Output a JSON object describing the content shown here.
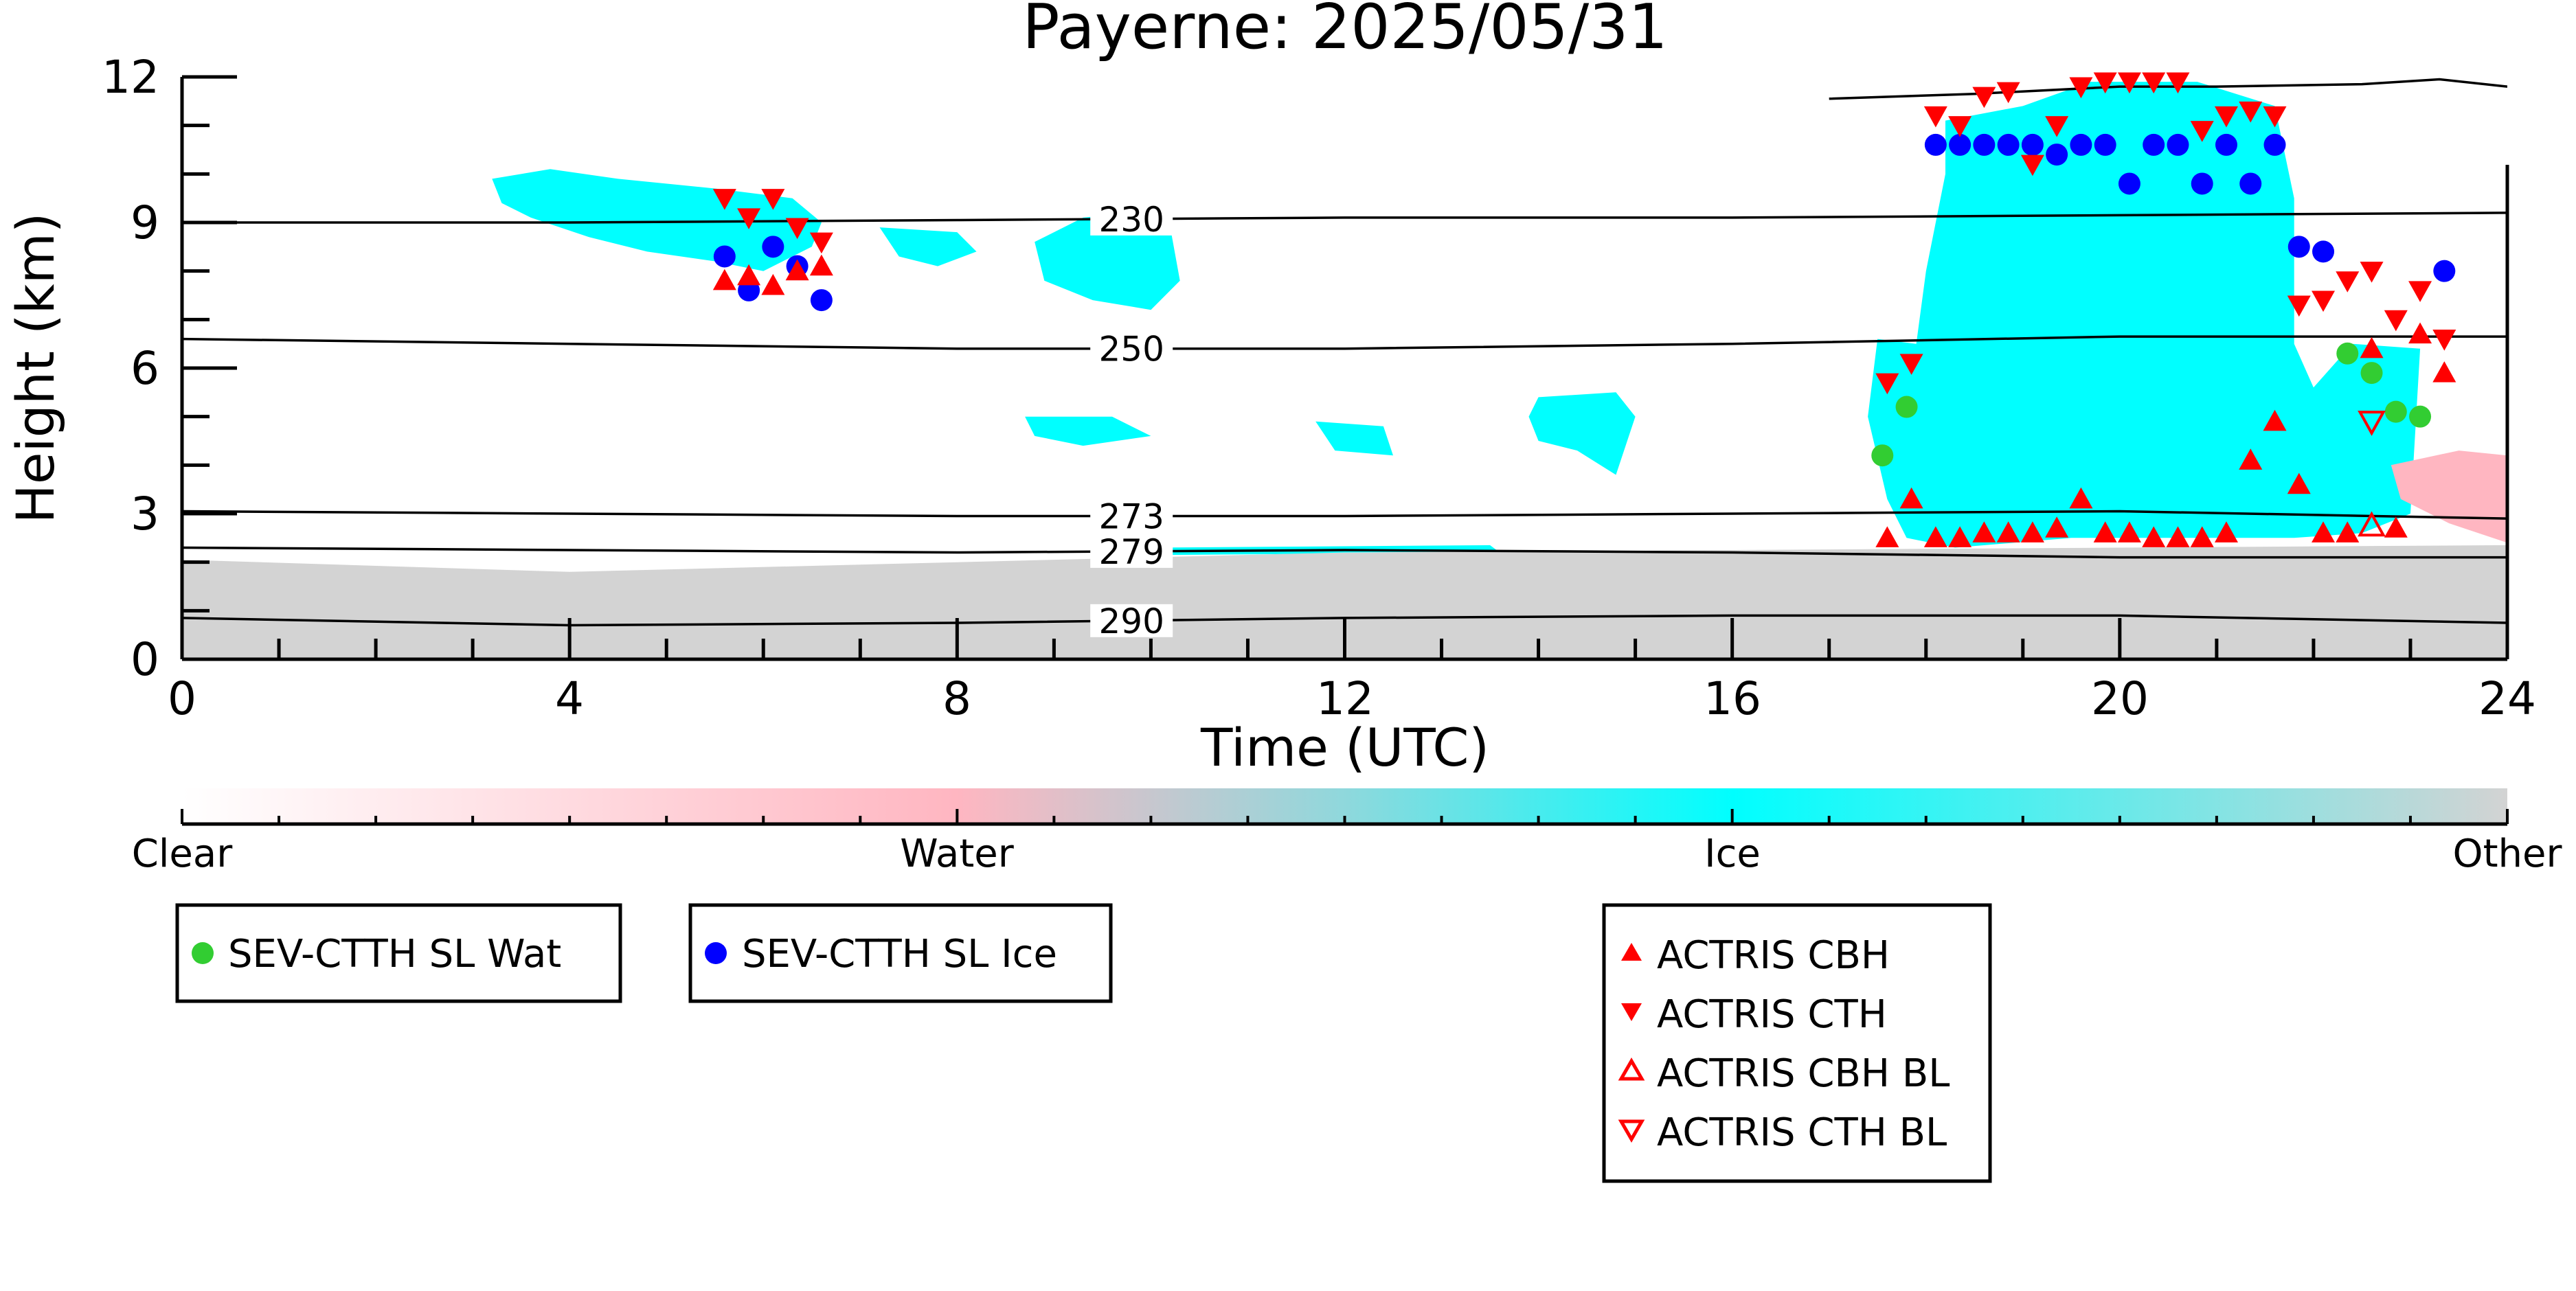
{
  "chart_data": {
    "type": "scatter",
    "title": "Payerne: 2025/05/31",
    "xlabel": "Time (UTC)",
    "ylabel": "Height (km)",
    "xlim": [
      0,
      24
    ],
    "ylim": [
      0,
      12
    ],
    "x_ticks": [
      "0",
      "4",
      "8",
      "12",
      "16",
      "20",
      "24"
    ],
    "y_ticks": [
      "0",
      "3",
      "6",
      "9",
      "12"
    ],
    "colors": {
      "clear": "#ffffff",
      "water": "#ffb6c1",
      "ice": "#00ffff",
      "other": "#d3d3d3",
      "sev_water": "#32cd32",
      "sev_ice": "#0000ff",
      "actris": "#ff0000",
      "isotherm": "#000000"
    },
    "colorbar": {
      "labels": [
        "Clear",
        "Water",
        "Ice",
        "Other"
      ],
      "stops": [
        0,
        0.333,
        0.667,
        1
      ]
    },
    "isotherms": [
      {
        "label": "230",
        "x": [
          0,
          4,
          8,
          12,
          16,
          20,
          24
        ],
        "y": [
          9.0,
          9.0,
          9.05,
          9.1,
          9.1,
          9.15,
          9.2
        ]
      },
      {
        "label": "250",
        "x": [
          0,
          4,
          8,
          12,
          16,
          20,
          24
        ],
        "y": [
          6.6,
          6.5,
          6.4,
          6.4,
          6.5,
          6.65,
          6.65
        ]
      },
      {
        "label": "273",
        "x": [
          0,
          4,
          8,
          12,
          16,
          20,
          24
        ],
        "y": [
          3.05,
          3.0,
          2.95,
          2.95,
          3.0,
          3.05,
          2.9
        ]
      },
      {
        "label": "279",
        "x": [
          0,
          4,
          8,
          12,
          16,
          20,
          24
        ],
        "y": [
          2.3,
          2.25,
          2.2,
          2.25,
          2.2,
          2.1,
          2.1
        ]
      },
      {
        "label": "290",
        "x": [
          0,
          4,
          8,
          12,
          16,
          20,
          24
        ],
        "y": [
          0.85,
          0.7,
          0.75,
          0.85,
          0.9,
          0.9,
          0.75
        ]
      }
    ],
    "isotherm_label_x": 9.8,
    "top_contour": {
      "x": [
        17.0,
        18.5,
        20,
        21,
        22.5,
        23.3,
        24
      ],
      "y": [
        11.55,
        11.65,
        11.8,
        11.8,
        11.85,
        11.95,
        11.8
      ]
    },
    "cloud_regions": [
      {
        "class": "ice",
        "points": [
          [
            3.2,
            9.9
          ],
          [
            3.8,
            10.1
          ],
          [
            4.5,
            9.9
          ],
          [
            5.5,
            9.7
          ],
          [
            6.3,
            9.5
          ],
          [
            6.6,
            9.0
          ],
          [
            6.5,
            8.5
          ],
          [
            6.0,
            8.0
          ],
          [
            5.5,
            8.2
          ],
          [
            4.8,
            8.4
          ],
          [
            4.2,
            8.7
          ],
          [
            3.6,
            9.1
          ],
          [
            3.3,
            9.4
          ]
        ]
      },
      {
        "class": "ice",
        "points": [
          [
            7.2,
            8.9
          ],
          [
            8.0,
            8.8
          ],
          [
            8.2,
            8.4
          ],
          [
            7.8,
            8.1
          ],
          [
            7.4,
            8.3
          ]
        ]
      },
      {
        "class": "ice",
        "points": [
          [
            8.8,
            8.6
          ],
          [
            9.3,
            9.1
          ],
          [
            9.8,
            9.2
          ],
          [
            10.2,
            8.9
          ],
          [
            10.3,
            7.8
          ],
          [
            10.0,
            7.2
          ],
          [
            9.4,
            7.4
          ],
          [
            8.9,
            7.8
          ]
        ]
      },
      {
        "class": "ice",
        "points": [
          [
            8.7,
            5.0
          ],
          [
            9.6,
            5.0
          ],
          [
            10.0,
            4.6
          ],
          [
            9.3,
            4.4
          ],
          [
            8.8,
            4.6
          ]
        ]
      },
      {
        "class": "ice",
        "points": [
          [
            11.7,
            4.9
          ],
          [
            12.4,
            4.8
          ],
          [
            12.5,
            4.2
          ],
          [
            11.9,
            4.3
          ]
        ]
      },
      {
        "class": "ice",
        "points": [
          [
            14.0,
            5.4
          ],
          [
            14.8,
            5.5
          ],
          [
            15.0,
            5.0
          ],
          [
            14.8,
            3.8
          ],
          [
            14.4,
            4.3
          ],
          [
            14.0,
            4.5
          ],
          [
            13.9,
            5.0
          ]
        ]
      },
      {
        "class": "ice",
        "points": [
          [
            17.5,
            6.6
          ],
          [
            17.9,
            6.5
          ],
          [
            18.0,
            8.0
          ],
          [
            18.2,
            10.0
          ],
          [
            18.2,
            11.1
          ],
          [
            19.0,
            11.4
          ],
          [
            19.7,
            11.9
          ],
          [
            20.8,
            11.9
          ],
          [
            21.6,
            11.4
          ],
          [
            21.8,
            9.5
          ],
          [
            21.8,
            6.5
          ],
          [
            22.0,
            5.6
          ],
          [
            22.4,
            6.5
          ],
          [
            23.1,
            6.4
          ],
          [
            23.0,
            3.0
          ],
          [
            22.5,
            2.6
          ],
          [
            21.8,
            2.5
          ],
          [
            21.2,
            2.5
          ],
          [
            19.5,
            2.5
          ],
          [
            18.3,
            2.3
          ],
          [
            17.8,
            2.5
          ],
          [
            17.6,
            3.3
          ],
          [
            17.4,
            5.0
          ]
        ]
      },
      {
        "class": "ice",
        "points": [
          [
            10.0,
            2.3
          ],
          [
            13.5,
            2.35
          ],
          [
            13.6,
            2.2
          ],
          [
            10.2,
            2.15
          ]
        ]
      },
      {
        "class": "water",
        "points": [
          [
            22.8,
            4.0
          ],
          [
            23.5,
            4.3
          ],
          [
            24.0,
            4.2
          ],
          [
            24.0,
            2.4
          ],
          [
            23.4,
            2.8
          ],
          [
            22.9,
            3.3
          ]
        ]
      },
      {
        "class": "other",
        "points": [
          [
            0,
            2.05
          ],
          [
            4,
            1.8
          ],
          [
            8,
            2.0
          ],
          [
            12,
            2.2
          ],
          [
            16,
            2.25
          ],
          [
            20,
            2.3
          ],
          [
            24,
            2.35
          ],
          [
            24,
            0
          ],
          [
            0,
            0
          ]
        ]
      }
    ],
    "series": [
      {
        "name": "SEV-CTTH SL Wat",
        "marker": "circle",
        "color": "#32cd32",
        "x": [
          17.55,
          17.8,
          22.35,
          22.6,
          22.85,
          23.1
        ],
        "y": [
          4.2,
          5.2,
          6.3,
          5.9,
          5.1,
          5.0
        ]
      },
      {
        "name": "SEV-CTTH SL Ice",
        "marker": "circle",
        "color": "#0000ff",
        "x": [
          5.6,
          5.85,
          6.1,
          6.35,
          6.6,
          18.1,
          18.35,
          18.6,
          18.85,
          19.1,
          19.35,
          19.6,
          19.85,
          20.1,
          20.35,
          20.6,
          20.85,
          21.1,
          21.35,
          21.6,
          21.85,
          22.1,
          23.35
        ],
        "y": [
          8.3,
          7.6,
          8.5,
          8.1,
          7.4,
          10.6,
          10.6,
          10.6,
          10.6,
          10.6,
          10.4,
          10.6,
          10.6,
          9.8,
          10.6,
          10.6,
          9.8,
          10.6,
          9.8,
          10.6,
          8.5,
          8.4,
          8.0
        ]
      },
      {
        "name": "ACTRIS CBH",
        "marker": "triangle-up",
        "color": "#ff0000",
        "filled": true,
        "x": [
          5.6,
          5.85,
          6.1,
          6.35,
          6.6,
          17.6,
          17.85,
          18.1,
          18.35,
          18.6,
          18.85,
          19.1,
          19.35,
          19.6,
          19.85,
          20.1,
          20.35,
          20.6,
          20.85,
          21.1,
          21.35,
          21.6,
          21.85,
          22.1,
          22.35,
          22.6,
          22.85,
          23.1,
          23.35
        ],
        "y": [
          7.8,
          7.9,
          7.7,
          8.0,
          8.1,
          2.5,
          3.3,
          2.5,
          2.5,
          2.6,
          2.6,
          2.6,
          2.7,
          3.3,
          2.6,
          2.6,
          2.5,
          2.5,
          2.5,
          2.6,
          4.1,
          4.9,
          3.6,
          2.6,
          2.6,
          6.4,
          2.7,
          6.7,
          5.9
        ]
      },
      {
        "name": "ACTRIS CTH",
        "marker": "triangle-down",
        "color": "#ff0000",
        "filled": true,
        "x": [
          5.6,
          5.85,
          6.1,
          6.35,
          6.6,
          17.6,
          17.85,
          18.1,
          18.35,
          18.6,
          18.85,
          19.1,
          19.35,
          19.6,
          19.85,
          20.1,
          20.35,
          20.6,
          20.85,
          21.1,
          21.35,
          21.6,
          21.85,
          22.1,
          22.35,
          22.6,
          22.85,
          23.1,
          23.35
        ],
        "y": [
          9.5,
          9.1,
          9.5,
          8.9,
          8.6,
          5.7,
          6.1,
          11.2,
          11.0,
          11.6,
          11.7,
          10.2,
          11.0,
          11.8,
          11.9,
          11.9,
          11.9,
          11.9,
          10.9,
          11.2,
          11.3,
          11.2,
          7.3,
          7.4,
          7.8,
          8.0,
          7.0,
          7.6,
          6.6
        ]
      },
      {
        "name": "ACTRIS CBH BL",
        "marker": "triangle-up",
        "color": "#ff0000",
        "filled": false,
        "x": [
          22.6
        ],
        "y": [
          2.75
        ]
      },
      {
        "name": "ACTRIS CTH BL",
        "marker": "triangle-down",
        "color": "#ff0000",
        "filled": false,
        "x": [
          22.6
        ],
        "y": [
          4.9
        ]
      }
    ]
  }
}
